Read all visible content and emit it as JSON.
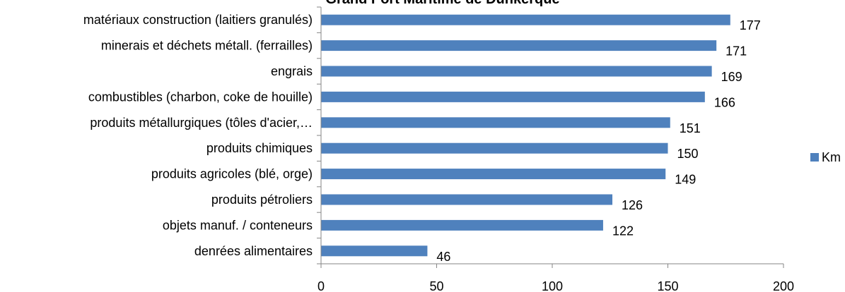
{
  "chart_data": {
    "type": "bar",
    "orientation": "horizontal",
    "title": "Grand Port Maritime de Dunkerque",
    "categories": [
      "matériaux construction (laitiers granulés)",
      "minerais et déchets métall. (ferrailles)",
      "engrais",
      "combustibles (charbon, coke de houille)",
      "produits métallurgiques (tôles d'acier,…",
      "produits chimiques",
      "produits agricoles (blé, orge)",
      "produits pétroliers",
      "objets manuf. / conteneurs",
      "denrées alimentaires"
    ],
    "series": [
      {
        "name": "Km",
        "values": [
          177,
          171,
          169,
          166,
          151,
          150,
          149,
          126,
          122,
          46
        ],
        "color": "#4f81bd"
      }
    ],
    "xlim": [
      0,
      200
    ],
    "xticks": [
      "0",
      "50",
      "100",
      "150",
      "200"
    ],
    "grid": false,
    "legend": "right",
    "data_labels": true
  }
}
